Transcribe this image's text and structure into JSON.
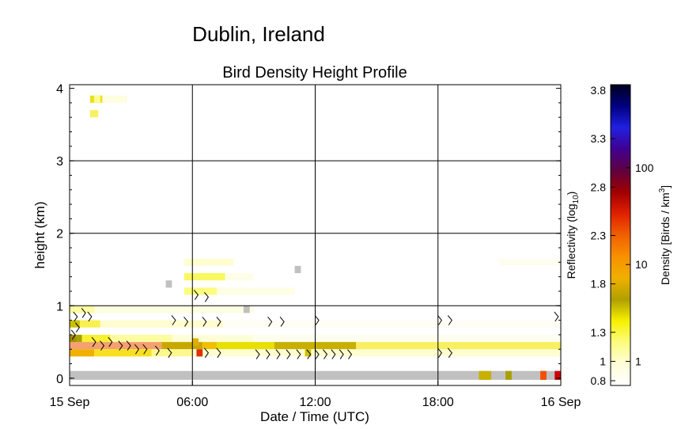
{
  "chart_data": {
    "type": "heatmap",
    "location": "Dublin, Ireland",
    "title": "Bird Density Height Profile",
    "xlabel": "Date / Time (UTC)",
    "ylabel": "height (km)",
    "x_ticks": [
      "15 Sep",
      "06:00",
      "12:00",
      "18:00",
      "16 Sep"
    ],
    "x_range_hours": [
      0,
      24
    ],
    "y_ticks": [
      "0",
      "1",
      "2",
      "3",
      "4"
    ],
    "y_range_km": [
      -0.1,
      4.05
    ],
    "grid": true,
    "colorbar": {
      "left_label": "Reflectivity (log10)",
      "left_ticks": [
        "0.8",
        "1",
        "1.3",
        "1.8",
        "2.3",
        "2.8",
        "3.3",
        "3.8"
      ],
      "right_label": "Density [Birds / km3]",
      "right_ticks": [
        "1",
        "10",
        "100"
      ]
    },
    "rows": [
      {
        "h": 0.45,
        "spans": [
          [
            0,
            4.5,
            "#f4a070"
          ],
          [
            4.5,
            6.5,
            "#c8a800"
          ],
          [
            6.5,
            7.2,
            "#f0c000"
          ],
          [
            7.2,
            10,
            "#e8e000"
          ],
          [
            10,
            14,
            "#c8b000"
          ],
          [
            14,
            24,
            "#f8f060"
          ]
        ]
      },
      {
        "h": 0.35,
        "spans": [
          [
            0,
            1.2,
            "#f0b000"
          ],
          [
            1.2,
            4,
            "#f8e020"
          ],
          [
            4,
            6,
            "#fcf890"
          ],
          [
            6,
            24,
            "#fdfdd0"
          ]
        ]
      },
      {
        "h": 0.55,
        "spans": [
          [
            0,
            0.6,
            "#a8a000"
          ],
          [
            0.6,
            2,
            "#f8f030"
          ],
          [
            2,
            5,
            "#fcfca0"
          ],
          [
            5,
            9,
            "#fdfdd8"
          ],
          [
            9,
            24,
            "#fefef0"
          ]
        ]
      },
      {
        "h": 0.75,
        "spans": [
          [
            0,
            0.5,
            "#c8c000"
          ],
          [
            0.5,
            1.5,
            "#f8f050"
          ],
          [
            1.5,
            7.5,
            "#fdfdd0"
          ],
          [
            7.5,
            24,
            "#fefef4"
          ]
        ]
      },
      {
        "h": 0.95,
        "spans": [
          [
            0,
            1.2,
            "#fcfca0"
          ],
          [
            1.2,
            9,
            "#fefee0"
          ]
        ]
      },
      {
        "h": 1.2,
        "spans": [
          [
            5.6,
            7.2,
            "#fcfc80"
          ],
          [
            7.2,
            11,
            "#fefee4"
          ]
        ]
      },
      {
        "h": 1.4,
        "spans": [
          [
            5.6,
            7.6,
            "#f8f860"
          ],
          [
            7.6,
            9,
            "#fefee8"
          ]
        ]
      },
      {
        "h": 1.6,
        "spans": [
          [
            5.6,
            8,
            "#fefed0"
          ],
          [
            21,
            24,
            "#fefef0"
          ]
        ]
      },
      {
        "h": 3.85,
        "spans": [
          [
            1,
            1.6,
            "#e8e020"
          ],
          [
            1.6,
            2.8,
            "#fefee0"
          ]
        ]
      },
      {
        "h": 3.65,
        "spans": [
          [
            1,
            1.4,
            "#f8f060"
          ]
        ]
      }
    ],
    "cells": [
      {
        "x": 6.2,
        "h": 0.35,
        "c": "#e03000"
      },
      {
        "x": 0,
        "h": 0.55,
        "c": "#a08c00"
      },
      {
        "x": 4.7,
        "h": 1.3,
        "c": "#c0c0c0"
      },
      {
        "x": 8.5,
        "h": 0.95,
        "c": "#c0c0c0"
      },
      {
        "x": 11,
        "h": 1.5,
        "c": "#c0c0c0"
      },
      {
        "x": 11.5,
        "h": 0.35,
        "c": "#d0c000"
      },
      {
        "x": 6,
        "h": 0.5,
        "c": "#e0b000"
      },
      {
        "x": 1.2,
        "h": 3.85,
        "c": "#fcfc90"
      }
    ],
    "ground": {
      "h": 0.05,
      "spans": [
        [
          0,
          24,
          "#c0c0c0"
        ],
        [
          20,
          20.6,
          "#c8b000"
        ],
        [
          21.3,
          21.6,
          "#a8a000"
        ],
        [
          23,
          23.3,
          "#f05000"
        ],
        [
          23.7,
          24,
          "#d00000"
        ]
      ]
    },
    "arrows": [
      {
        "x": 0.3,
        "h": 0.85
      },
      {
        "x": 0.7,
        "h": 0.9
      },
      {
        "x": 1.0,
        "h": 0.85
      },
      {
        "x": 0.2,
        "h": 0.6
      },
      {
        "x": 0.4,
        "h": 0.7
      },
      {
        "x": 1.2,
        "h": 0.5
      },
      {
        "x": 1.6,
        "h": 0.45
      },
      {
        "x": 2.0,
        "h": 0.5
      },
      {
        "x": 2.5,
        "h": 0.45
      },
      {
        "x": 2.9,
        "h": 0.45
      },
      {
        "x": 3.3,
        "h": 0.4
      },
      {
        "x": 3.7,
        "h": 0.4
      },
      {
        "x": 4.3,
        "h": 0.38
      },
      {
        "x": 4.9,
        "h": 0.35
      },
      {
        "x": 5.1,
        "h": 0.8
      },
      {
        "x": 5.7,
        "h": 0.78
      },
      {
        "x": 6.6,
        "h": 0.78
      },
      {
        "x": 7.3,
        "h": 0.78
      },
      {
        "x": 6.2,
        "h": 1.15
      },
      {
        "x": 6.7,
        "h": 1.12
      },
      {
        "x": 6.7,
        "h": 0.35
      },
      {
        "x": 7.3,
        "h": 0.35
      },
      {
        "x": 9.8,
        "h": 0.78
      },
      {
        "x": 10.4,
        "h": 0.78
      },
      {
        "x": 12.1,
        "h": 0.8
      },
      {
        "x": 9.2,
        "h": 0.33
      },
      {
        "x": 9.7,
        "h": 0.33
      },
      {
        "x": 10.2,
        "h": 0.33
      },
      {
        "x": 10.7,
        "h": 0.33
      },
      {
        "x": 11.2,
        "h": 0.33
      },
      {
        "x": 11.7,
        "h": 0.33
      },
      {
        "x": 12.1,
        "h": 0.33
      },
      {
        "x": 12.5,
        "h": 0.33
      },
      {
        "x": 12.9,
        "h": 0.33
      },
      {
        "x": 13.3,
        "h": 0.33
      },
      {
        "x": 13.7,
        "h": 0.33
      },
      {
        "x": 18.1,
        "h": 0.8
      },
      {
        "x": 18.6,
        "h": 0.8
      },
      {
        "x": 18.1,
        "h": 0.35
      },
      {
        "x": 18.6,
        "h": 0.35
      },
      {
        "x": 23.8,
        "h": 0.85
      }
    ],
    "colorbar_colors": [
      "#ffffff",
      "#fefed8",
      "#fcfc80",
      "#f8f000",
      "#b0a000",
      "#f0b000",
      "#f89000",
      "#f06000",
      "#e02000",
      "#a00000",
      "#600040",
      "#400090",
      "#2020e0",
      "#000080",
      "#000020"
    ]
  }
}
